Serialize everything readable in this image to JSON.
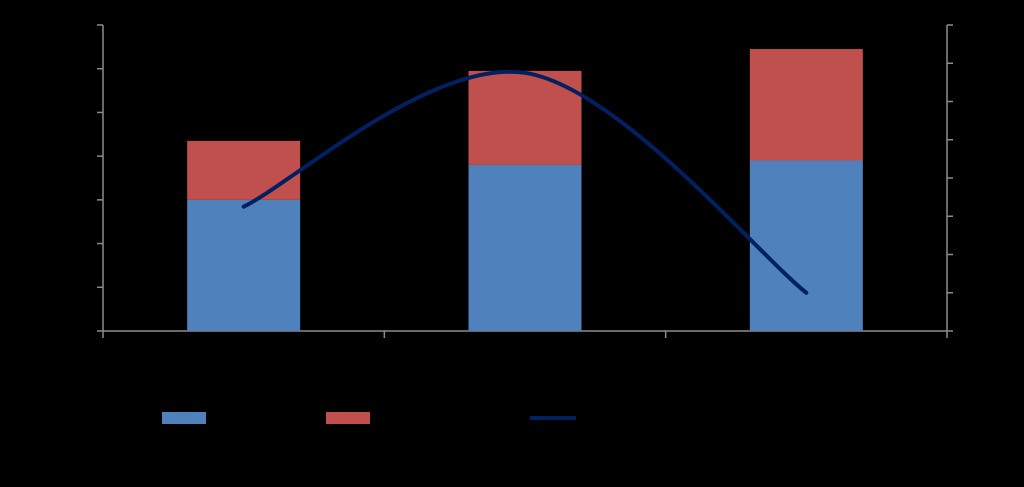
{
  "chart_data": {
    "type": "bar",
    "stacked": true,
    "categories": [
      "",
      "",
      ""
    ],
    "series": [
      {
        "values": [
          30,
          38,
          39
        ],
        "color": "#4f81bd",
        "axis": "left"
      },
      {
        "values": [
          13.5,
          21.5,
          25.5
        ],
        "color": "#c0504d",
        "axis": "left"
      },
      {
        "type": "line",
        "smooth": true,
        "values": [
          6.5,
          13.5,
          2
        ],
        "color": "#002060",
        "axis": "right"
      }
    ],
    "left_axis": {
      "ylim": [
        0,
        70
      ],
      "ticks": [
        0,
        10,
        20,
        30,
        40,
        50,
        60,
        70
      ]
    },
    "right_axis": {
      "ylim": [
        0,
        16
      ],
      "ticks": [
        0,
        2,
        4,
        6,
        8,
        10,
        12,
        14,
        16
      ]
    },
    "grid": false,
    "legend_placement": "bottom",
    "background": "#000000"
  }
}
